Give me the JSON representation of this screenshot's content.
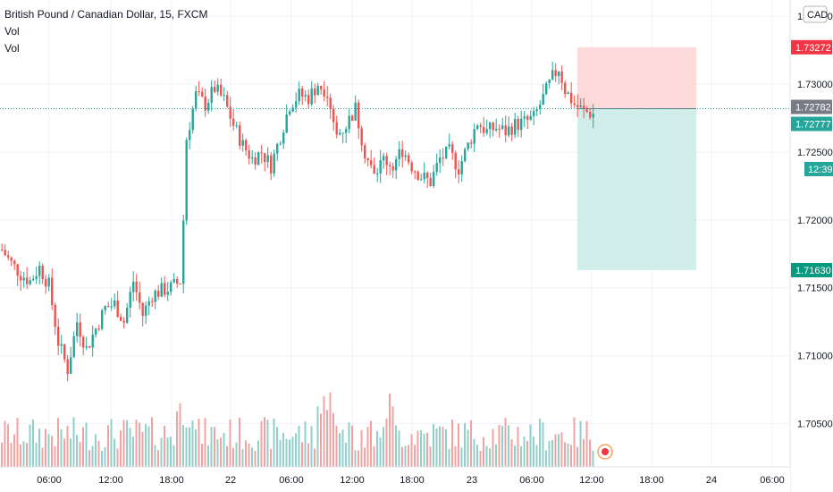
{
  "chart_data": {
    "type": "candlestick",
    "title": "British Pound / Canadian Dollar, 15, FXCM",
    "indicators": [
      "Vol",
      "Vol"
    ],
    "currency": "CAD",
    "y_ticks": [
      "1.70500",
      "1.71000",
      "1.71500",
      "1.72000",
      "1.72500",
      "1.73000",
      "1.73500"
    ],
    "x_ticks": [
      "06:00",
      "12:00",
      "18:00",
      "22",
      "06:00",
      "12:00",
      "18:00",
      "23",
      "06:00",
      "12:00",
      "18:00",
      "24",
      "06:00"
    ],
    "ylim": [
      1.7018,
      1.7362
    ],
    "price_path": [
      [
        0,
        1.7178
      ],
      [
        3,
        1.7168
      ],
      [
        6,
        1.716
      ],
      [
        9,
        1.7155
      ],
      [
        12,
        1.7165
      ],
      [
        15,
        1.7152
      ],
      [
        18,
        1.711
      ],
      [
        21,
        1.709
      ],
      [
        24,
        1.7125
      ],
      [
        27,
        1.7105
      ],
      [
        30,
        1.712
      ],
      [
        33,
        1.7135
      ],
      [
        36,
        1.7138
      ],
      [
        39,
        1.7125
      ],
      [
        42,
        1.7155
      ],
      [
        45,
        1.713
      ],
      [
        48,
        1.7145
      ],
      [
        51,
        1.7148
      ],
      [
        54,
        1.715
      ],
      [
        57,
        1.7155
      ],
      [
        58,
        1.72
      ],
      [
        59,
        1.726
      ],
      [
        62,
        1.7292
      ],
      [
        65,
        1.7285
      ],
      [
        68,
        1.7297
      ],
      [
        71,
        1.7288
      ],
      [
        74,
        1.727
      ],
      [
        77,
        1.7255
      ],
      [
        80,
        1.7245
      ],
      [
        83,
        1.725
      ],
      [
        86,
        1.724
      ],
      [
        89,
        1.7262
      ],
      [
        92,
        1.7285
      ],
      [
        95,
        1.7292
      ],
      [
        98,
        1.729
      ],
      [
        101,
        1.73
      ],
      [
        104,
        1.7295
      ],
      [
        107,
        1.7262
      ],
      [
        110,
        1.727
      ],
      [
        113,
        1.7282
      ],
      [
        116,
        1.725
      ],
      [
        119,
        1.7232
      ],
      [
        122,
        1.7245
      ],
      [
        125,
        1.724
      ],
      [
        128,
        1.7252
      ],
      [
        131,
        1.724
      ],
      [
        134,
        1.7232
      ],
      [
        137,
        1.7228
      ],
      [
        140,
        1.7245
      ],
      [
        143,
        1.725
      ],
      [
        146,
        1.7238
      ],
      [
        149,
        1.7255
      ],
      [
        152,
        1.7272
      ],
      [
        155,
        1.7265
      ],
      [
        158,
        1.7268
      ],
      [
        161,
        1.7265
      ],
      [
        164,
        1.727
      ],
      [
        167,
        1.7272
      ],
      [
        170,
        1.7275
      ],
      [
        173,
        1.729
      ],
      [
        176,
        1.7305
      ],
      [
        178,
        1.7312
      ],
      [
        180,
        1.7296
      ],
      [
        183,
        1.7285
      ],
      [
        186,
        1.728
      ],
      [
        189,
        1.7278
      ]
    ],
    "position": {
      "stop_label": "1.73272",
      "stop_color": "#f23645",
      "target_label": "1.71630",
      "target_color": "#089981"
    },
    "last_price": {
      "value_label": "1.72782",
      "bid_label": "1.72777",
      "countdown": "12:39"
    },
    "colors": {
      "up": "#26a69a",
      "down": "#ef5350",
      "vol_up": "#8fd1c9",
      "vol_down": "#f2a3a1",
      "grid": "#f0f3fa",
      "profit_zone": "#d1ede9",
      "loss_zone": "#fcdada",
      "last_price_tag": "#787b86",
      "bid_tag": "#26a69a"
    }
  }
}
